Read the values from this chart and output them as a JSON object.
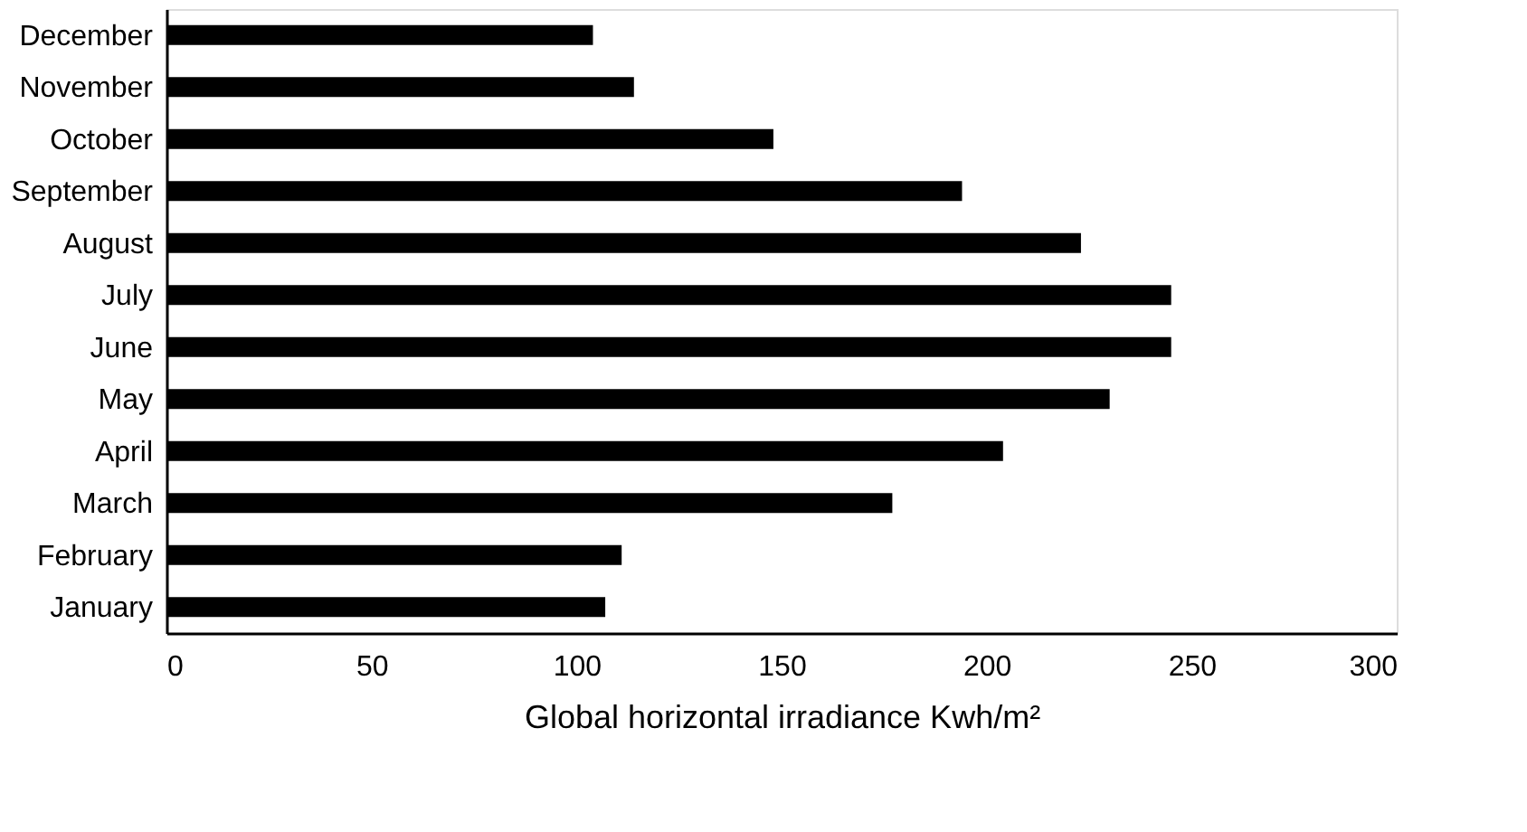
{
  "chart_data": {
    "type": "bar",
    "orientation": "horizontal",
    "categories": [
      "December",
      "November",
      "October",
      "September",
      "August",
      "July",
      "June",
      "May",
      "April",
      "March",
      "February",
      "January"
    ],
    "values": [
      104,
      114,
      148,
      194,
      223,
      245,
      245,
      230,
      204,
      177,
      111,
      107
    ],
    "color": "#000000",
    "xlabel": "Global horizontal irradiance Kwh/m²",
    "xlim": [
      0,
      300
    ],
    "xticks": [
      0,
      50,
      100,
      150,
      200,
      250,
      300
    ],
    "grid": false
  }
}
